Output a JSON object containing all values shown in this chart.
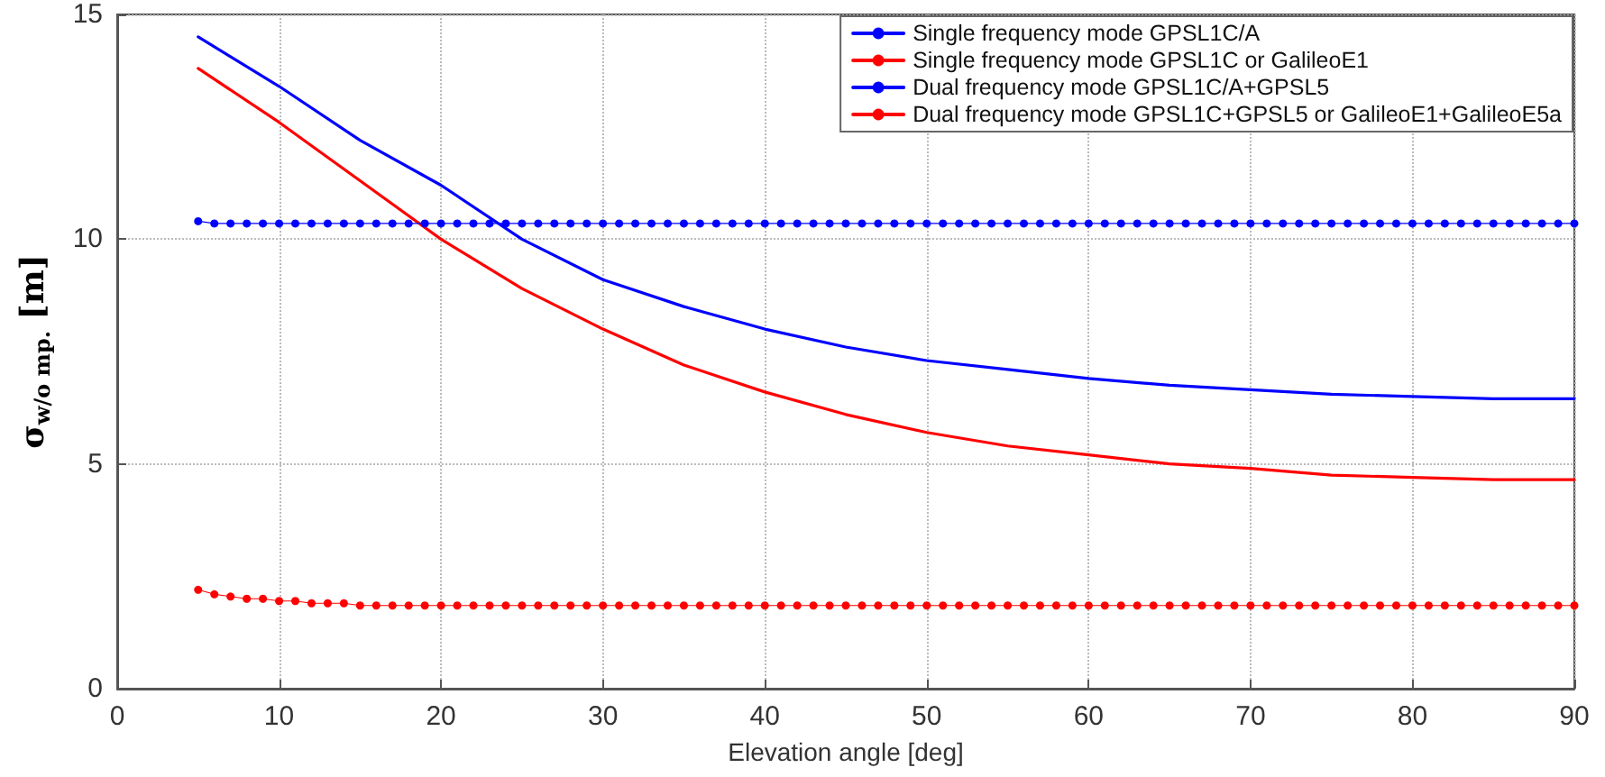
{
  "chart_data": {
    "type": "line",
    "xlabel": "Elevation angle [deg]",
    "ylabel": "σ$_{w/o mp.}$ [m]",
    "x": [
      5,
      6,
      7,
      8,
      9,
      10,
      11,
      12,
      13,
      14,
      15,
      16,
      17,
      18,
      19,
      20,
      21,
      22,
      23,
      24,
      25,
      26,
      27,
      28,
      29,
      30,
      31,
      32,
      33,
      34,
      35,
      36,
      37,
      38,
      39,
      40,
      41,
      42,
      43,
      44,
      45,
      46,
      47,
      48,
      49,
      50,
      51,
      52,
      53,
      54,
      55,
      56,
      57,
      58,
      59,
      60,
      61,
      62,
      63,
      64,
      65,
      66,
      67,
      68,
      69,
      70,
      71,
      72,
      73,
      74,
      75,
      76,
      77,
      78,
      79,
      80,
      81,
      82,
      83,
      84,
      85,
      86,
      87,
      88,
      89,
      90
    ],
    "xlim": [
      0,
      90
    ],
    "xticks": [
      0,
      10,
      20,
      30,
      40,
      50,
      60,
      70,
      80,
      90
    ],
    "ylim": [
      0,
      15
    ],
    "yticks": [
      0,
      5,
      10,
      15
    ],
    "grid": true,
    "legend": "top right",
    "line_style": "solid",
    "series": [
      {
        "name": "Single frequency mode GPSL1C/A",
        "color": "#0000ff",
        "marker": "none",
        "x": [
          5,
          10,
          15,
          20,
          25,
          30,
          35,
          40,
          45,
          50,
          55,
          60,
          65,
          70,
          75,
          80,
          85,
          90
        ],
        "values": [
          14.5,
          13.4,
          12.2,
          11.2,
          10.0,
          9.1,
          8.5,
          8.0,
          7.6,
          7.3,
          7.1,
          6.9,
          6.75,
          6.65,
          6.55,
          6.5,
          6.45,
          6.45
        ]
      },
      {
        "name": "Single frequency mode GPSL1C or GalileoE1",
        "color": "#ff0000",
        "marker": "none",
        "x": [
          5,
          10,
          15,
          20,
          25,
          30,
          35,
          40,
          45,
          50,
          55,
          60,
          65,
          70,
          75,
          80,
          85,
          90
        ],
        "values": [
          13.8,
          12.6,
          11.3,
          10.0,
          8.9,
          8.0,
          7.2,
          6.6,
          6.1,
          5.7,
          5.4,
          5.2,
          5.0,
          4.9,
          4.75,
          4.7,
          4.65,
          4.65
        ]
      },
      {
        "name": "Dual frequency mode GPSL1C/A+GPSL5",
        "color": "#0000ff",
        "marker": "circle",
        "values": [
          10.4,
          10.35,
          10.35,
          10.35,
          10.35,
          10.35,
          10.35,
          10.35,
          10.35,
          10.35,
          10.35,
          10.35,
          10.35,
          10.35,
          10.35,
          10.35,
          10.35,
          10.35,
          10.35,
          10.35,
          10.35,
          10.35,
          10.35,
          10.35,
          10.35,
          10.35,
          10.35,
          10.35,
          10.35,
          10.35,
          10.35,
          10.35,
          10.35,
          10.35,
          10.35,
          10.35,
          10.35,
          10.35,
          10.35,
          10.35,
          10.35,
          10.35,
          10.35,
          10.35,
          10.35,
          10.35,
          10.35,
          10.35,
          10.35,
          10.35,
          10.35,
          10.35,
          10.35,
          10.35,
          10.35,
          10.35,
          10.35,
          10.35,
          10.35,
          10.35,
          10.35,
          10.35,
          10.35,
          10.35,
          10.35,
          10.35,
          10.35,
          10.35,
          10.35,
          10.35,
          10.35,
          10.35,
          10.35,
          10.35,
          10.35,
          10.35,
          10.35,
          10.35,
          10.35,
          10.35,
          10.35,
          10.35,
          10.35,
          10.35,
          10.35,
          10.35
        ]
      },
      {
        "name": "Dual frequency mode GPSL1C+GPSL5 or GalileoE1+GalileoE5a",
        "color": "#ff0000",
        "marker": "circle",
        "values": [
          2.2,
          2.1,
          2.05,
          2.0,
          2.0,
          1.95,
          1.95,
          1.9,
          1.9,
          1.9,
          1.85,
          1.85,
          1.85,
          1.85,
          1.85,
          1.85,
          1.85,
          1.85,
          1.85,
          1.85,
          1.85,
          1.85,
          1.85,
          1.85,
          1.85,
          1.85,
          1.85,
          1.85,
          1.85,
          1.85,
          1.85,
          1.85,
          1.85,
          1.85,
          1.85,
          1.85,
          1.85,
          1.85,
          1.85,
          1.85,
          1.85,
          1.85,
          1.85,
          1.85,
          1.85,
          1.85,
          1.85,
          1.85,
          1.85,
          1.85,
          1.85,
          1.85,
          1.85,
          1.85,
          1.85,
          1.85,
          1.85,
          1.85,
          1.85,
          1.85,
          1.85,
          1.85,
          1.85,
          1.85,
          1.85,
          1.85,
          1.85,
          1.85,
          1.85,
          1.85,
          1.85,
          1.85,
          1.85,
          1.85,
          1.85,
          1.85,
          1.85,
          1.85,
          1.85,
          1.85,
          1.85,
          1.85,
          1.85,
          1.85,
          1.85,
          1.85
        ]
      }
    ]
  }
}
